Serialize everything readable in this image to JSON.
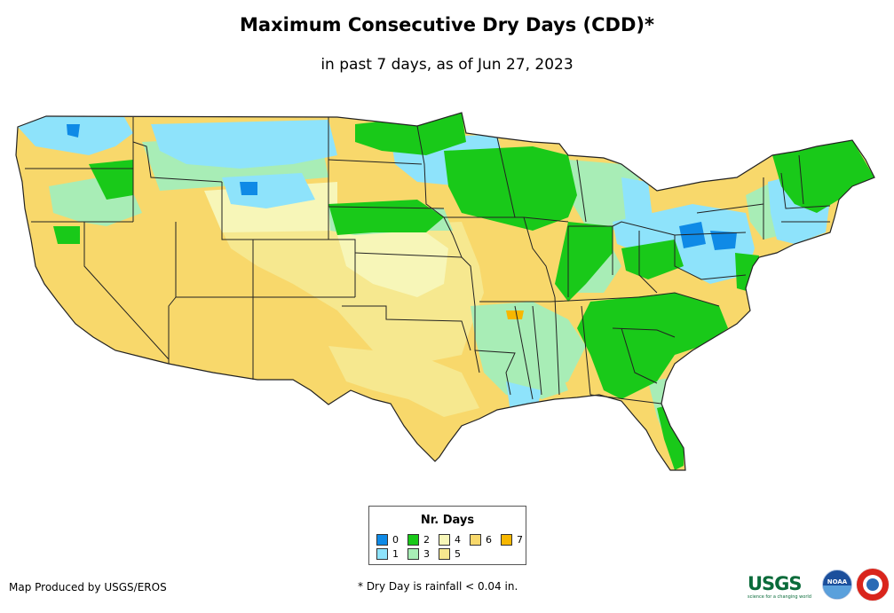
{
  "map": {
    "title": "Maximum Consecutive Dry Days (CDD)*",
    "subtitle": "in past 7 days, as of Jun 27, 2023",
    "region": "Contiguous United States"
  },
  "legend": {
    "title": "Nr. Days",
    "items": [
      {
        "label": "0",
        "color": "#0f8ae6"
      },
      {
        "label": "1",
        "color": "#8ee3fb"
      },
      {
        "label": "2",
        "color": "#19c919"
      },
      {
        "label": "3",
        "color": "#a8edb6"
      },
      {
        "label": "4",
        "color": "#f7f6b8"
      },
      {
        "label": "5",
        "color": "#f6e88f"
      },
      {
        "label": "6",
        "color": "#f8d86b"
      },
      {
        "label": "7",
        "color": "#f7b700"
      }
    ]
  },
  "footer": {
    "credit": "Map Produced by USGS/EROS",
    "note": "* Dry Day is rainfall < 0.04 in."
  },
  "logos": {
    "usgs": "USGS",
    "usgs_tagline": "science for a changing world",
    "noaa": "NOAA",
    "nws": "NWS"
  }
}
